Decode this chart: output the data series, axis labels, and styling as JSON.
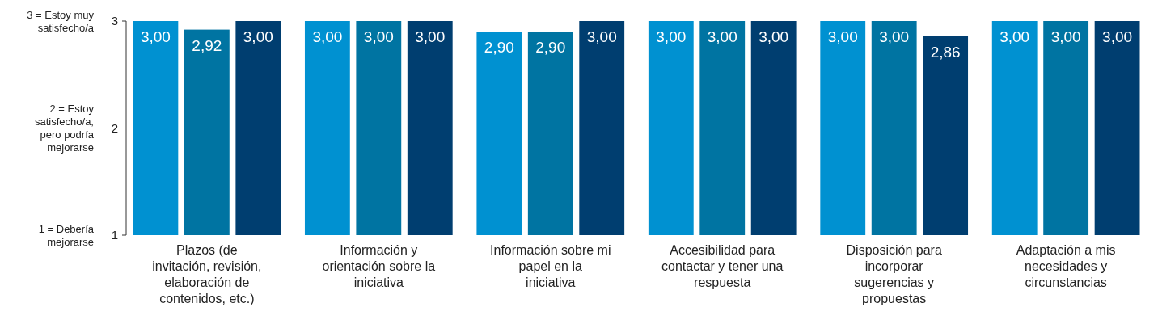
{
  "chart_data": {
    "type": "bar",
    "categories": [
      "Plazos (de invitación, revisión, elaboración de contenidos, etc.)",
      "Información y orientación sobre la iniciativa",
      "Información sobre mi papel en la iniciativa",
      "Accesibilidad para contactar y tener una respuesta",
      "Disposición para incorporar sugerencias y propuestas",
      "Adaptación a mis necesidades y circunstancias"
    ],
    "series": [
      {
        "color": "#0091d1",
        "values": [
          3.0,
          3.0,
          2.9,
          3.0,
          3.0,
          3.0
        ],
        "value_labels": [
          "3,00",
          "3,00",
          "2,90",
          "3,00",
          "3,00",
          "3,00"
        ]
      },
      {
        "color": "#0074a2",
        "values": [
          2.92,
          3.0,
          2.9,
          3.0,
          3.0,
          3.0
        ],
        "value_labels": [
          "2,92",
          "3,00",
          "2,90",
          "3,00",
          "3,00",
          "3,00"
        ]
      },
      {
        "color": "#003e70",
        "values": [
          3.0,
          3.0,
          3.0,
          3.0,
          2.86,
          3.0
        ],
        "value_labels": [
          "3,00",
          "3,00",
          "3,00",
          "3,00",
          "2,86",
          "3,00"
        ]
      }
    ],
    "ylim": [
      1,
      3
    ],
    "yticks": [
      1,
      2,
      3
    ],
    "grid": false,
    "annotations": [
      "3 = Estoy muy satisfecho/a",
      "2 = Estoy satisfecho/a, pero podría mejorarse",
      "1 = Debería mejorarse"
    ]
  }
}
